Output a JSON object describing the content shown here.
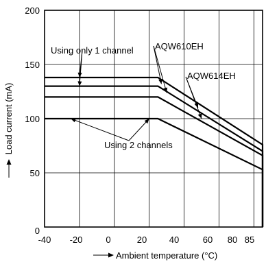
{
  "chart_data": {
    "type": "line",
    "xlabel": "Ambient temperature (°C)",
    "ylabel": "Load current (mA)",
    "xlim": [
      -40,
      85
    ],
    "ylim": [
      0,
      200
    ],
    "x_ticks": [
      "-40",
      "-20",
      "0",
      "20",
      "40",
      "60",
      "80",
      "85"
    ],
    "y_ticks": [
      "0",
      "50",
      "100",
      "150",
      "200"
    ],
    "grid": true,
    "series": [
      {
        "x": [
          -40,
          25,
          85,
          85
        ],
        "y": [
          138,
          138,
          76,
          0
        ]
      },
      {
        "x": [
          -40,
          25,
          85,
          85
        ],
        "y": [
          130,
          130,
          70,
          0
        ]
      },
      {
        "x": [
          -40,
          25,
          85,
          85
        ],
        "y": [
          120,
          120,
          66,
          0
        ]
      },
      {
        "x": [
          -40,
          25,
          85,
          85
        ],
        "y": [
          100,
          100,
          53,
          0
        ]
      }
    ],
    "annotations": [
      {
        "text": "Using only 1 channel",
        "targets": [
          [
            -20,
            138
          ],
          [
            -20,
            130
          ]
        ]
      },
      {
        "text": "AQW610EH",
        "targets": [
          [
            27,
            132
          ],
          [
            30,
            124
          ]
        ]
      },
      {
        "text": "AQW614EH",
        "targets": [
          [
            48,
            110
          ],
          [
            50,
            100
          ]
        ]
      },
      {
        "text": "Using 2 channels",
        "targets": [
          [
            -25,
            100
          ],
          [
            20,
            100
          ]
        ]
      }
    ]
  }
}
